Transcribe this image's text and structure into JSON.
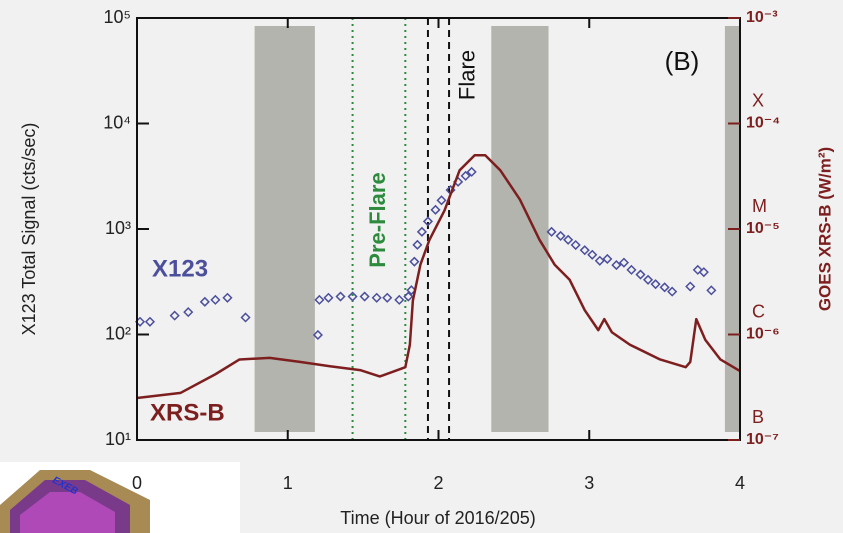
{
  "chart_data": {
    "type": "scatter-line",
    "panel_label": "(B)",
    "x_label": "Time (Hour of 2016/205)",
    "y_label": "X123 Total Signal (cts/sec)",
    "y2_label": "GOES XRS-B (W/m²)",
    "xlim": [
      0,
      4
    ],
    "xticks": [
      0,
      1,
      2,
      3,
      4
    ],
    "ylim": [
      10,
      100000
    ],
    "yticks": [
      {
        "value": 10,
        "label": "10¹"
      },
      {
        "value": 100,
        "label": "10²"
      },
      {
        "value": 1000,
        "label": "10³"
      },
      {
        "value": 10000,
        "label": "10⁴"
      },
      {
        "value": 100000,
        "label": "10⁵"
      }
    ],
    "y2lim": [
      1e-07,
      0.001
    ],
    "y2ticks": [
      {
        "value": 1e-07,
        "label": "10⁻⁷"
      },
      {
        "value": 1e-06,
        "label": "10⁻⁶"
      },
      {
        "value": 1e-05,
        "label": "10⁻⁵"
      },
      {
        "value": 0.0001,
        "label": "10⁻⁴"
      },
      {
        "value": 0.001,
        "label": "10⁻³"
      }
    ],
    "y_log": true,
    "y2_log": true,
    "goes_classes": [
      {
        "value": 1e-07,
        "label": "B"
      },
      {
        "value": 1e-06,
        "label": "C"
      },
      {
        "value": 1e-05,
        "label": "M"
      },
      {
        "value": 0.0001,
        "label": "X"
      }
    ],
    "shaded_regions": [
      [
        0.78,
        1.18
      ],
      [
        2.35,
        2.73
      ],
      [
        3.9,
        4.0
      ]
    ],
    "shade_color": "#b4b4ae",
    "vlines": [
      {
        "x": 1.43,
        "color": "#2e8b3e",
        "style": "dotted"
      },
      {
        "x": 1.78,
        "color": "#2e8b3e",
        "style": "dotted"
      },
      {
        "x": 1.93,
        "color": "#111111",
        "style": "dashed"
      },
      {
        "x": 2.07,
        "color": "#111111",
        "style": "dashed"
      }
    ],
    "preflare_label": "Pre-Flare",
    "flare_label": "Flare",
    "inset_label": "EXEB",
    "series": [
      {
        "name": "X123",
        "color": "#4b4f9c",
        "marker": "diamond",
        "x": [
          0.02,
          0.086,
          0.25,
          0.34,
          0.45,
          0.52,
          0.6,
          0.72,
          1.2,
          1.21,
          1.27,
          1.35,
          1.43,
          1.51,
          1.59,
          1.66,
          1.74,
          1.8,
          1.82,
          1.84,
          1.86,
          1.89,
          1.93,
          1.98,
          2.02,
          2.08,
          2.13,
          2.18,
          2.22,
          2.75,
          2.81,
          2.86,
          2.91,
          2.97,
          3.02,
          3.07,
          3.12,
          3.18,
          3.23,
          3.28,
          3.34,
          3.39,
          3.44,
          3.5,
          3.55,
          3.67,
          3.72,
          3.76,
          3.81
        ],
        "values": [
          132,
          132,
          151,
          163,
          204,
          213,
          223,
          145,
          99,
          213,
          223,
          229,
          229,
          229,
          223,
          223,
          213,
          229,
          263,
          490,
          708,
          940,
          1180,
          1520,
          1870,
          2340,
          2800,
          3190,
          3480,
          940,
          860,
          790,
          705,
          630,
          570,
          500,
          520,
          455,
          480,
          410,
          370,
          330,
          300,
          280,
          255,
          285,
          410,
          390,
          262
        ]
      },
      {
        "name": "XRS-B",
        "color": "#7d1f1f",
        "axis": "y2",
        "x": [
          0,
          0.29,
          0.52,
          0.68,
          0.88,
          1.08,
          1.28,
          1.48,
          1.61,
          1.71,
          1.78,
          1.81,
          1.83,
          1.88,
          1.94,
          2.04,
          2.14,
          2.24,
          2.31,
          2.41,
          2.54,
          2.67,
          2.77,
          2.87,
          2.97,
          3.06,
          3.1,
          3.15,
          3.27,
          3.47,
          3.64,
          3.67,
          3.71,
          3.77,
          3.87,
          4.0
        ],
        "values": [
          2.5e-07,
          2.8e-07,
          4.2e-07,
          5.8e-07,
          6e-07,
          5.5e-07,
          5e-07,
          4.6e-07,
          4e-07,
          4.5e-07,
          4.9e-07,
          8e-07,
          2.1e-06,
          4.6e-06,
          7.9e-06,
          1.5e-05,
          3.6e-05,
          5e-05,
          5e-05,
          3.6e-05,
          1.9e-05,
          7.9e-06,
          4.6e-06,
          3.3e-06,
          1.7e-06,
          1.1e-06,
          1.4e-06,
          1.05e-06,
          8e-07,
          5.8e-07,
          4.9e-07,
          5.5e-07,
          1.4e-06,
          8.9e-07,
          5.8e-07,
          4.5e-07
        ]
      }
    ]
  }
}
